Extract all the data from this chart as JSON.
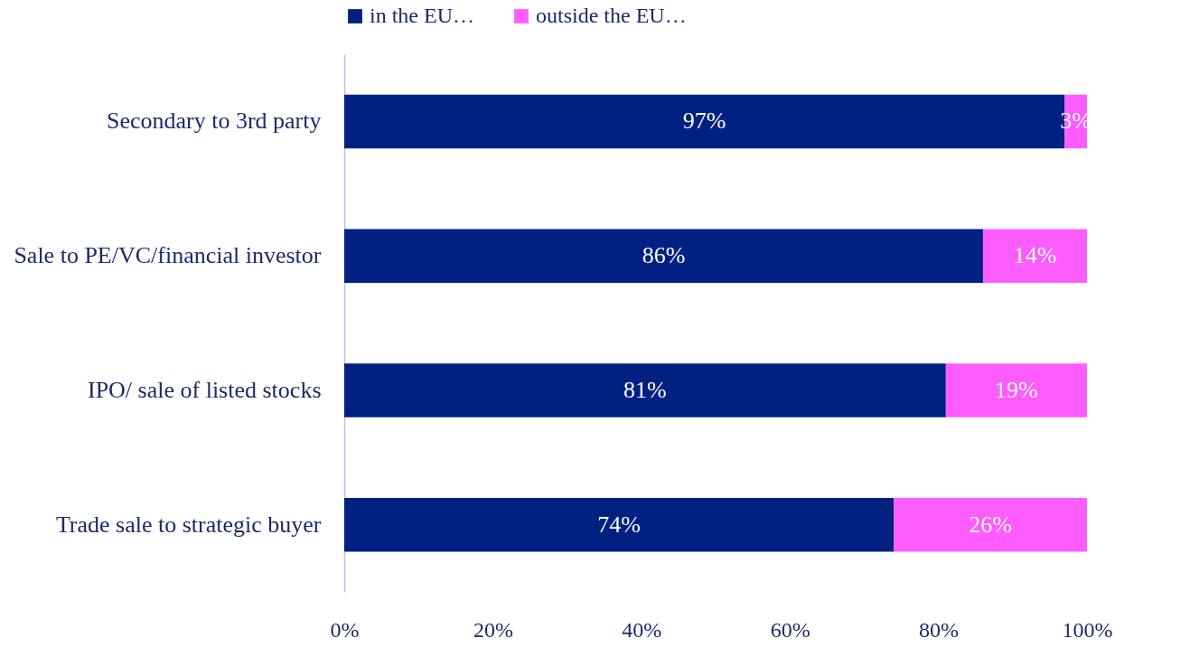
{
  "chart_data": {
    "type": "bar",
    "orientation": "horizontal",
    "stacked": true,
    "legend": "top",
    "grid": false,
    "categories": [
      "Secondary to 3rd party",
      "Sale to PE/VC/financial investor",
      "IPO/ sale of listed stocks",
      "Trade sale to strategic buyer"
    ],
    "series": [
      {
        "name": "in the EU…",
        "color": "#002082",
        "values": [
          97,
          86,
          81,
          74
        ],
        "value_labels": [
          "97%",
          "86%",
          "81%",
          "74%"
        ]
      },
      {
        "name": "outside the EU…",
        "color": "#ff5cff",
        "values": [
          3,
          14,
          19,
          26
        ],
        "value_labels": [
          "3%",
          "14%",
          "19%",
          "26%"
        ]
      }
    ],
    "xlim": [
      0,
      100
    ],
    "xticks": [
      {
        "value": 0,
        "label": "0%"
      },
      {
        "value": 20,
        "label": "20%"
      },
      {
        "value": 40,
        "label": "40%"
      },
      {
        "value": 60,
        "label": "60%"
      },
      {
        "value": 80,
        "label": "80%"
      },
      {
        "value": 100,
        "label": "100%"
      }
    ]
  }
}
